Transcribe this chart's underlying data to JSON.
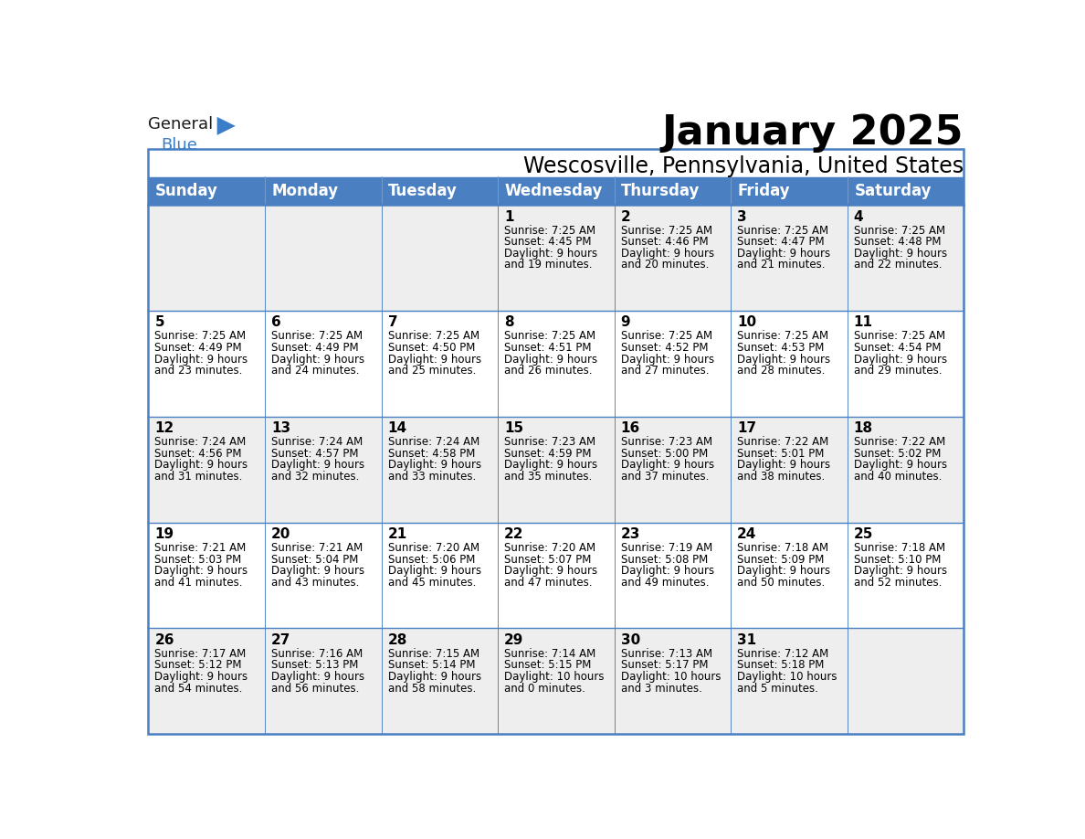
{
  "title": "January 2025",
  "subtitle": "Wescosville, Pennsylvania, United States",
  "header_color": "#4a7fc1",
  "header_text_color": "#FFFFFF",
  "weekdays": [
    "Sunday",
    "Monday",
    "Tuesday",
    "Wednesday",
    "Thursday",
    "Friday",
    "Saturday"
  ],
  "cell_bg_even": "#eeeeee",
  "cell_bg_odd": "#ffffff",
  "text_color": "#000000",
  "border_color": "#4a7fc1",
  "days": [
    {
      "day": null,
      "col": 0,
      "row": 0,
      "sunrise": "",
      "sunset": "",
      "daylight": ""
    },
    {
      "day": null,
      "col": 1,
      "row": 0,
      "sunrise": "",
      "sunset": "",
      "daylight": ""
    },
    {
      "day": null,
      "col": 2,
      "row": 0,
      "sunrise": "",
      "sunset": "",
      "daylight": ""
    },
    {
      "day": 1,
      "col": 3,
      "row": 0,
      "sunrise": "7:25 AM",
      "sunset": "4:45 PM",
      "daylight": "9 hours and 19 minutes."
    },
    {
      "day": 2,
      "col": 4,
      "row": 0,
      "sunrise": "7:25 AM",
      "sunset": "4:46 PM",
      "daylight": "9 hours and 20 minutes."
    },
    {
      "day": 3,
      "col": 5,
      "row": 0,
      "sunrise": "7:25 AM",
      "sunset": "4:47 PM",
      "daylight": "9 hours and 21 minutes."
    },
    {
      "day": 4,
      "col": 6,
      "row": 0,
      "sunrise": "7:25 AM",
      "sunset": "4:48 PM",
      "daylight": "9 hours and 22 minutes."
    },
    {
      "day": 5,
      "col": 0,
      "row": 1,
      "sunrise": "7:25 AM",
      "sunset": "4:49 PM",
      "daylight": "9 hours and 23 minutes."
    },
    {
      "day": 6,
      "col": 1,
      "row": 1,
      "sunrise": "7:25 AM",
      "sunset": "4:49 PM",
      "daylight": "9 hours and 24 minutes."
    },
    {
      "day": 7,
      "col": 2,
      "row": 1,
      "sunrise": "7:25 AM",
      "sunset": "4:50 PM",
      "daylight": "9 hours and 25 minutes."
    },
    {
      "day": 8,
      "col": 3,
      "row": 1,
      "sunrise": "7:25 AM",
      "sunset": "4:51 PM",
      "daylight": "9 hours and 26 minutes."
    },
    {
      "day": 9,
      "col": 4,
      "row": 1,
      "sunrise": "7:25 AM",
      "sunset": "4:52 PM",
      "daylight": "9 hours and 27 minutes."
    },
    {
      "day": 10,
      "col": 5,
      "row": 1,
      "sunrise": "7:25 AM",
      "sunset": "4:53 PM",
      "daylight": "9 hours and 28 minutes."
    },
    {
      "day": 11,
      "col": 6,
      "row": 1,
      "sunrise": "7:25 AM",
      "sunset": "4:54 PM",
      "daylight": "9 hours and 29 minutes."
    },
    {
      "day": 12,
      "col": 0,
      "row": 2,
      "sunrise": "7:24 AM",
      "sunset": "4:56 PM",
      "daylight": "9 hours and 31 minutes."
    },
    {
      "day": 13,
      "col": 1,
      "row": 2,
      "sunrise": "7:24 AM",
      "sunset": "4:57 PM",
      "daylight": "9 hours and 32 minutes."
    },
    {
      "day": 14,
      "col": 2,
      "row": 2,
      "sunrise": "7:24 AM",
      "sunset": "4:58 PM",
      "daylight": "9 hours and 33 minutes."
    },
    {
      "day": 15,
      "col": 3,
      "row": 2,
      "sunrise": "7:23 AM",
      "sunset": "4:59 PM",
      "daylight": "9 hours and 35 minutes."
    },
    {
      "day": 16,
      "col": 4,
      "row": 2,
      "sunrise": "7:23 AM",
      "sunset": "5:00 PM",
      "daylight": "9 hours and 37 minutes."
    },
    {
      "day": 17,
      "col": 5,
      "row": 2,
      "sunrise": "7:22 AM",
      "sunset": "5:01 PM",
      "daylight": "9 hours and 38 minutes."
    },
    {
      "day": 18,
      "col": 6,
      "row": 2,
      "sunrise": "7:22 AM",
      "sunset": "5:02 PM",
      "daylight": "9 hours and 40 minutes."
    },
    {
      "day": 19,
      "col": 0,
      "row": 3,
      "sunrise": "7:21 AM",
      "sunset": "5:03 PM",
      "daylight": "9 hours and 41 minutes."
    },
    {
      "day": 20,
      "col": 1,
      "row": 3,
      "sunrise": "7:21 AM",
      "sunset": "5:04 PM",
      "daylight": "9 hours and 43 minutes."
    },
    {
      "day": 21,
      "col": 2,
      "row": 3,
      "sunrise": "7:20 AM",
      "sunset": "5:06 PM",
      "daylight": "9 hours and 45 minutes."
    },
    {
      "day": 22,
      "col": 3,
      "row": 3,
      "sunrise": "7:20 AM",
      "sunset": "5:07 PM",
      "daylight": "9 hours and 47 minutes."
    },
    {
      "day": 23,
      "col": 4,
      "row": 3,
      "sunrise": "7:19 AM",
      "sunset": "5:08 PM",
      "daylight": "9 hours and 49 minutes."
    },
    {
      "day": 24,
      "col": 5,
      "row": 3,
      "sunrise": "7:18 AM",
      "sunset": "5:09 PM",
      "daylight": "9 hours and 50 minutes."
    },
    {
      "day": 25,
      "col": 6,
      "row": 3,
      "sunrise": "7:18 AM",
      "sunset": "5:10 PM",
      "daylight": "9 hours and 52 minutes."
    },
    {
      "day": 26,
      "col": 0,
      "row": 4,
      "sunrise": "7:17 AM",
      "sunset": "5:12 PM",
      "daylight": "9 hours and 54 minutes."
    },
    {
      "day": 27,
      "col": 1,
      "row": 4,
      "sunrise": "7:16 AM",
      "sunset": "5:13 PM",
      "daylight": "9 hours and 56 minutes."
    },
    {
      "day": 28,
      "col": 2,
      "row": 4,
      "sunrise": "7:15 AM",
      "sunset": "5:14 PM",
      "daylight": "9 hours and 58 minutes."
    },
    {
      "day": 29,
      "col": 3,
      "row": 4,
      "sunrise": "7:14 AM",
      "sunset": "5:15 PM",
      "daylight": "10 hours and 0 minutes."
    },
    {
      "day": 30,
      "col": 4,
      "row": 4,
      "sunrise": "7:13 AM",
      "sunset": "5:17 PM",
      "daylight": "10 hours and 3 minutes."
    },
    {
      "day": 31,
      "col": 5,
      "row": 4,
      "sunrise": "7:12 AM",
      "sunset": "5:18 PM",
      "daylight": "10 hours and 5 minutes."
    },
    {
      "day": null,
      "col": 6,
      "row": 4,
      "sunrise": "",
      "sunset": "",
      "daylight": ""
    }
  ],
  "logo_general_color": "#1a1a1a",
  "logo_blue_color": "#3b7dc8",
  "logo_triangle_color": "#3b7dc8",
  "title_fontsize": 32,
  "subtitle_fontsize": 17,
  "header_fontsize": 12,
  "day_num_fontsize": 11,
  "cell_text_fontsize": 8.5
}
